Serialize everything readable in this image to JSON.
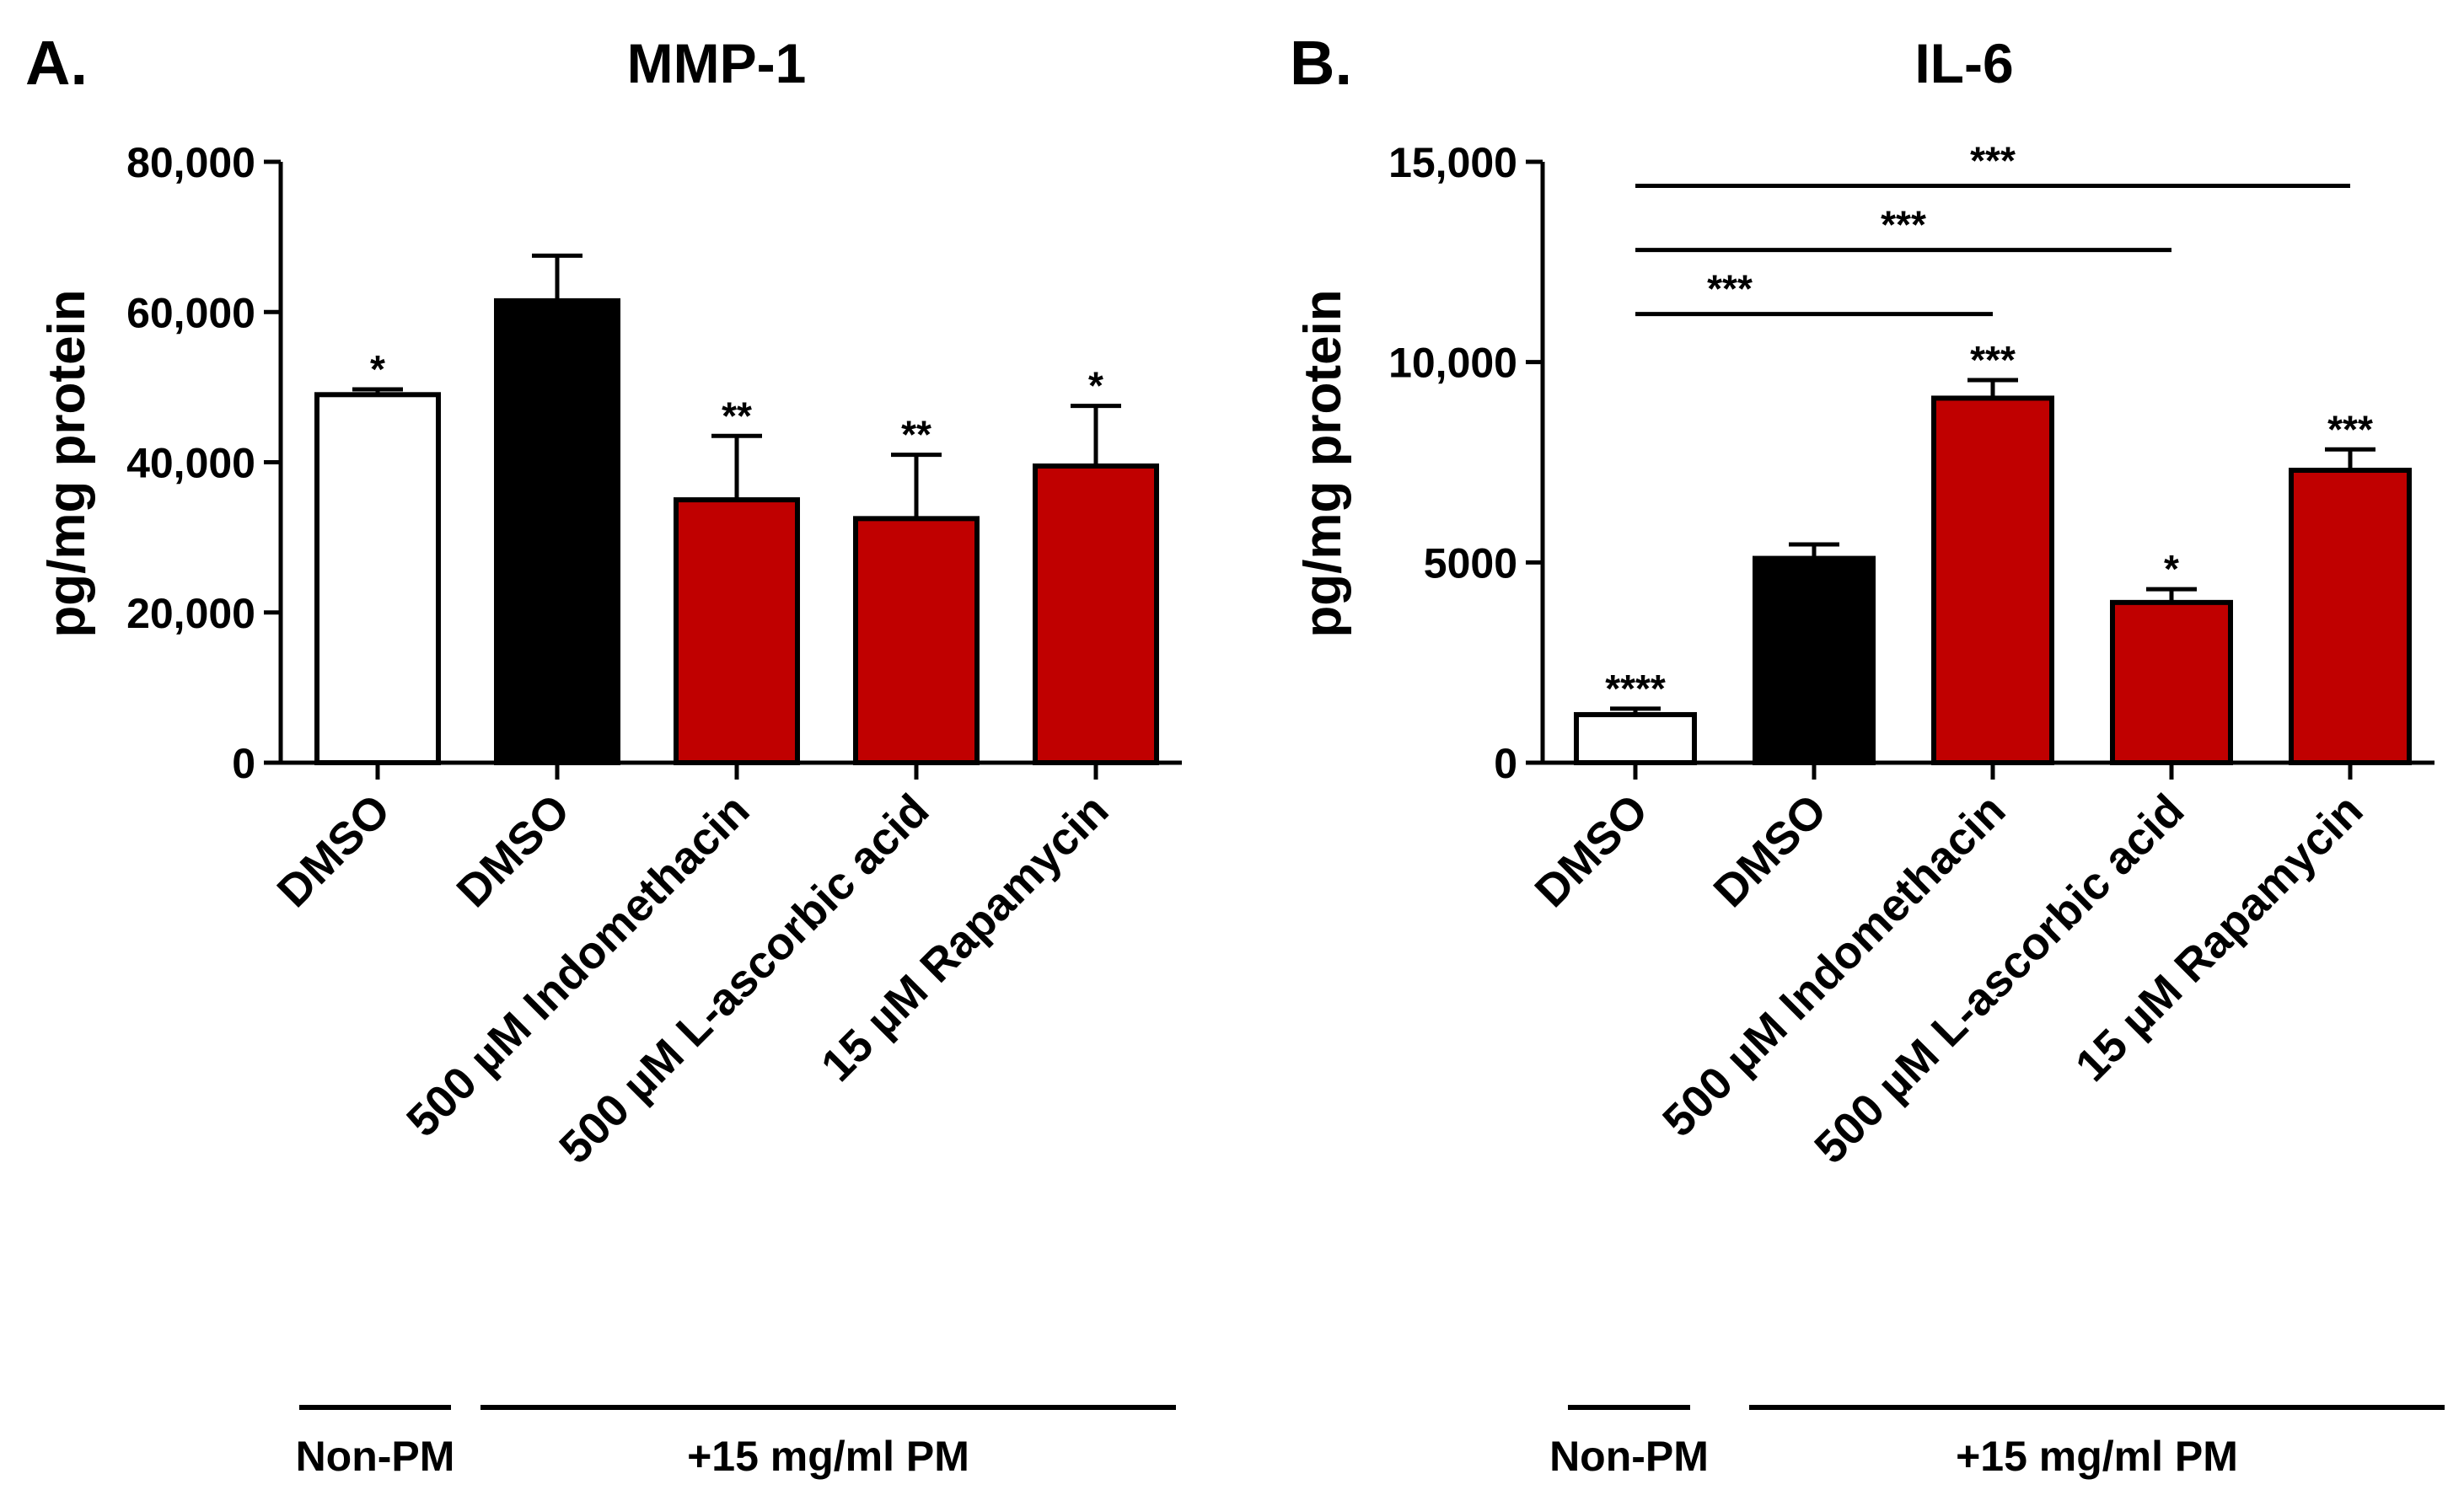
{
  "chart_data": [
    {
      "type": "bar",
      "panel_label": "A.",
      "title": "MMP-1",
      "ylabel": "pg/mg protein",
      "ylim": [
        0,
        80000
      ],
      "yticks": [
        "0",
        "20,000",
        "40,000",
        "60,000",
        "80,000"
      ],
      "ytick_values": [
        0,
        20000,
        40000,
        60000,
        80000
      ],
      "categories": [
        "DMSO",
        "DMSO",
        "500 µM Indomethacin",
        "500 µM L-ascorbic acid",
        "15 µM Rapamycin"
      ],
      "values": [
        49000,
        61500,
        35000,
        32500,
        39500
      ],
      "errors": [
        700,
        6000,
        8500,
        8500,
        8000
      ],
      "bar_colors": [
        "#ffffff",
        "#000000",
        "#c00000",
        "#c00000",
        "#c00000"
      ],
      "significance": [
        "*",
        "",
        "**",
        "**",
        "*"
      ],
      "brackets": [],
      "groups": [
        {
          "label": "Non-PM",
          "start": 0,
          "end": 0
        },
        {
          "label": "+15 mg/ml PM",
          "start": 1,
          "end": 4
        }
      ]
    },
    {
      "type": "bar",
      "panel_label": "B.",
      "title": "IL-6",
      "ylabel": "pg/mg protein",
      "ylim": [
        0,
        15000
      ],
      "yticks": [
        "0",
        "5000",
        "10,000",
        "15,000"
      ],
      "ytick_values": [
        0,
        5000,
        10000,
        15000
      ],
      "categories": [
        "DMSO",
        "DMSO",
        "500 µM Indomethacin",
        "500 µM L-ascorbic acid",
        "15 µM Rapamycin"
      ],
      "values": [
        1200,
        5100,
        9100,
        4000,
        7300
      ],
      "errors": [
        150,
        350,
        450,
        330,
        520
      ],
      "bar_colors": [
        "#ffffff",
        "#000000",
        "#c00000",
        "#c00000",
        "#c00000"
      ],
      "significance": [
        "****",
        "",
        "***",
        "*",
        "***"
      ],
      "brackets": [
        {
          "from": 0,
          "to": 2,
          "label": "***",
          "level": 11200
        },
        {
          "from": 0,
          "to": 3,
          "label": "***",
          "level": 12800
        },
        {
          "from": 0,
          "to": 4,
          "label": "***",
          "level": 14400
        }
      ],
      "groups": [
        {
          "label": "Non-PM",
          "start": 0,
          "end": 0
        },
        {
          "label": "+15 mg/ml PM",
          "start": 1,
          "end": 4
        }
      ]
    }
  ]
}
